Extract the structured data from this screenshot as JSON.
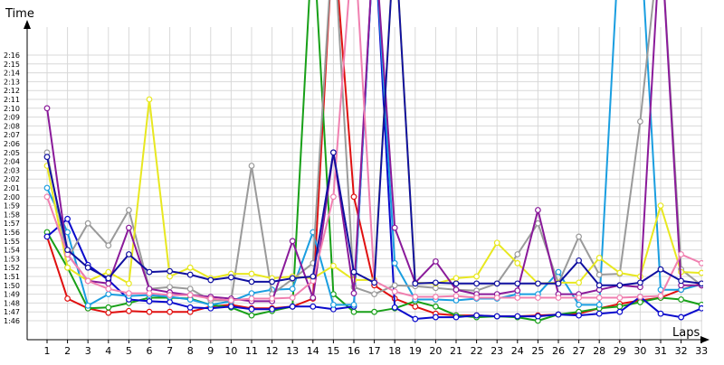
{
  "chart_data": {
    "type": "line",
    "xlabel": "Laps",
    "ylabel": "Time",
    "grid": true,
    "legend": "none",
    "xlim": [
      0,
      33
    ],
    "ylim": [
      105.0,
      136.0
    ],
    "categories": [
      "1",
      "2",
      "3",
      "4",
      "5",
      "6",
      "7",
      "8",
      "9",
      "10",
      "11",
      "12",
      "13",
      "14",
      "15",
      "16",
      "17",
      "18",
      "19",
      "20",
      "21",
      "22",
      "23",
      "24",
      "25",
      "26",
      "27",
      "28",
      "29",
      "30",
      "31",
      "32",
      "33"
    ],
    "ytick_labels": [
      "1:46",
      "1:47",
      "1:48",
      "1:49",
      "1:50",
      "1:51",
      "1:52",
      "1:53",
      "1:54",
      "1:55",
      "1:56",
      "1:57",
      "1:58",
      "1:59",
      "2:00",
      "2:01",
      "2:02",
      "2:03",
      "2:04",
      "2:05",
      "2:06",
      "2:07",
      "2:08",
      "2:09",
      "2:10",
      "2:11",
      "2:12",
      "2:13",
      "2:14",
      "2:15",
      "2:16"
    ],
    "series": [
      {
        "color": "#e01010",
        "values": [
          115.5,
          108.5,
          107.4,
          106.9,
          107.1,
          107.0,
          107.0,
          107.0,
          107.6,
          107.8,
          107.4,
          107.4,
          107.6,
          108.5,
          150,
          120,
          110.0,
          108.5,
          107.6,
          106.8,
          106.6,
          106.6,
          106.5,
          106.5,
          106.6,
          106.7,
          106.8,
          107.4,
          107.9,
          108.3,
          108.6,
          109.5,
          110.2
        ]
      },
      {
        "color": "#18a018",
        "values": [
          116.0,
          112.0,
          107.4,
          107.5,
          108.0,
          108.6,
          108.6,
          108.5,
          107.8,
          107.5,
          106.6,
          107.1,
          107.6,
          150,
          109.0,
          107.0,
          107.0,
          107.4,
          108.2,
          107.6,
          106.6,
          106.4,
          106.5,
          106.4,
          106.0,
          106.7,
          107.0,
          107.4,
          107.6,
          108.1,
          108.6,
          108.4,
          107.8
        ]
      },
      {
        "color": "#0a0acc",
        "values": [
          115.5,
          117.5,
          112.3,
          110.6,
          108.4,
          108.2,
          108.1,
          107.5,
          107.4,
          107.6,
          107.3,
          107.3,
          107.6,
          107.6,
          107.3,
          107.6,
          150,
          107.5,
          106.2,
          106.4,
          106.4,
          106.6,
          106.5,
          106.5,
          106.5,
          106.7,
          106.6,
          106.8,
          107.0,
          108.7,
          106.8,
          106.4,
          107.4
        ]
      },
      {
        "color": "#1a9ee0",
        "values": [
          121.0,
          116.0,
          107.7,
          109.0,
          108.8,
          108.9,
          108.7,
          108.4,
          107.8,
          108.2,
          109.1,
          109.5,
          109.6,
          116.0,
          107.8,
          107.8,
          150,
          112.5,
          108.4,
          108.4,
          108.3,
          108.5,
          108.5,
          109.0,
          109.0,
          111.5,
          107.8,
          107.8,
          150,
          150,
          109.5,
          109.5,
          110.1
        ]
      },
      {
        "color": "#9a9a9a",
        "values": [
          125.0,
          113.0,
          117.0,
          114.5,
          118.5,
          109.6,
          109.8,
          109.6,
          108.3,
          108.3,
          123.5,
          109.0,
          110.7,
          112.5,
          150,
          109.8,
          109.0,
          110.0,
          109.9,
          109.7,
          109.5,
          109.4,
          110.2,
          113.5,
          117.0,
          110.2,
          115.5,
          111.2,
          111.3,
          128.5,
          150,
          111.8,
          110.0
        ]
      },
      {
        "color": "#e8e820",
        "values": [
          123.5,
          112.0,
          110.5,
          111.5,
          110.2,
          131.0,
          111.0,
          112.0,
          110.8,
          111.3,
          111.3,
          110.8,
          111.0,
          110.8,
          112.2,
          110.6,
          110.6,
          150,
          110.3,
          110.2,
          110.8,
          111.0,
          114.8,
          112.5,
          110.2,
          110.3,
          110.3,
          113.1,
          111.4,
          111.0,
          119.0,
          111.5,
          111.4
        ]
      },
      {
        "color": "#8a1a9a",
        "values": [
          130.0,
          113.5,
          110.5,
          110.2,
          116.5,
          109.6,
          109.2,
          108.9,
          108.7,
          108.5,
          108.2,
          108.2,
          115.0,
          108.6,
          125.0,
          109.1,
          150,
          116.5,
          110.3,
          112.7,
          109.5,
          109.0,
          109.0,
          109.4,
          118.5,
          109.0,
          109.0,
          109.5,
          110.0,
          109.8,
          150,
          110.0,
          110.0
        ]
      },
      {
        "color": "#f080b0",
        "values": [
          120.0,
          113.5,
          110.5,
          109.6,
          109.1,
          109.1,
          108.9,
          108.9,
          108.5,
          108.3,
          108.5,
          108.5,
          108.6,
          110.5,
          120.0,
          150,
          110.5,
          109.3,
          108.7,
          108.7,
          108.8,
          108.6,
          108.6,
          108.6,
          108.6,
          108.6,
          108.6,
          108.6,
          108.6,
          108.7,
          108.8,
          113.5,
          112.5
        ]
      },
      {
        "color": "#1010a0",
        "values": [
          124.5,
          114.0,
          112.0,
          110.8,
          113.5,
          111.5,
          111.6,
          111.2,
          110.6,
          110.9,
          110.4,
          110.4,
          110.8,
          111.0,
          125.0,
          111.5,
          110.3,
          150,
          110.2,
          110.3,
          110.2,
          110.2,
          110.2,
          110.2,
          110.2,
          110.2,
          112.8,
          110.0,
          110.0,
          110.3,
          111.8,
          110.5,
          110.2
        ]
      }
    ]
  }
}
